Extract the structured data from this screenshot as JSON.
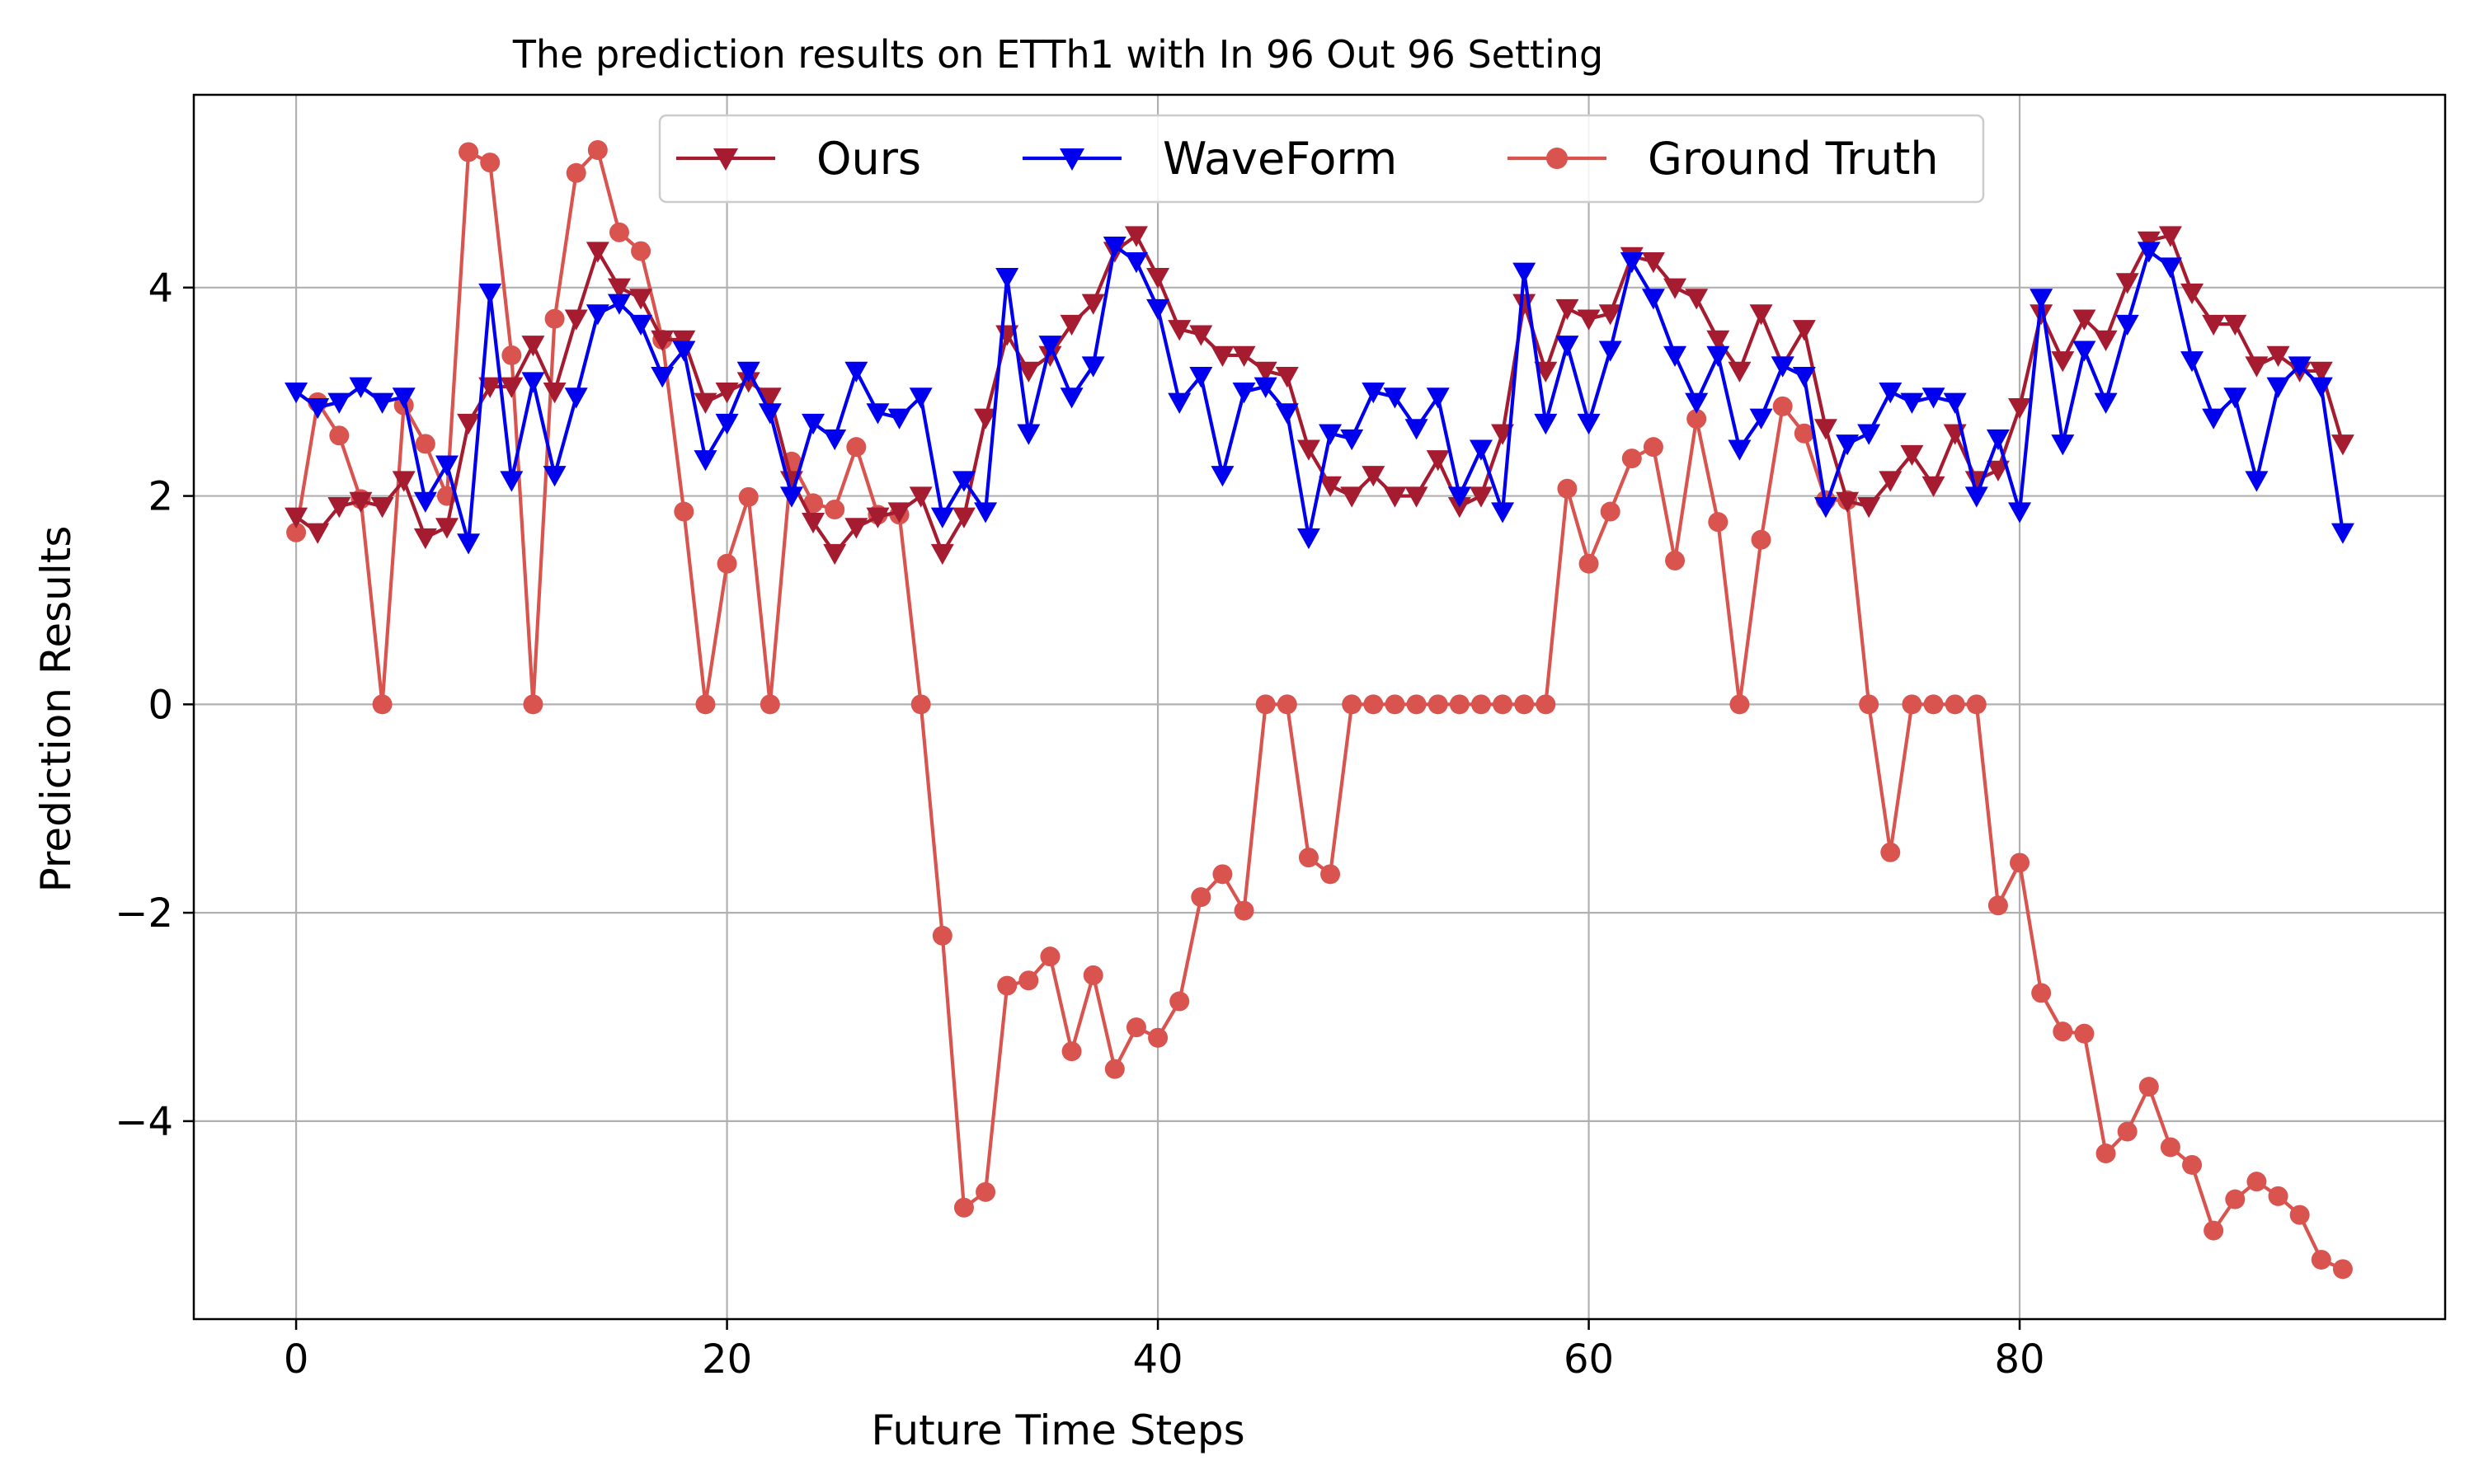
{
  "chart_data": {
    "type": "line",
    "title": "The prediction results on ETTh1 with In 96 Out 96 Setting",
    "xlabel": "Future Time Steps",
    "ylabel": "Prediction Results",
    "xlim": [
      -4.75,
      99.75
    ],
    "ylim": [
      -5.9,
      5.85
    ],
    "xticks": [
      0,
      20,
      40,
      60,
      80
    ],
    "xtick_labels": [
      "0",
      "20",
      "40",
      "60",
      "80"
    ],
    "yticks": [
      -4,
      -2,
      0,
      2,
      4
    ],
    "ytick_labels": [
      "−4",
      "−2",
      "0",
      "2",
      "4"
    ],
    "grid": true,
    "legend_position": "upper-center",
    "x": [
      0,
      1,
      2,
      3,
      4,
      5,
      6,
      7,
      8,
      9,
      10,
      11,
      12,
      13,
      14,
      15,
      16,
      17,
      18,
      19,
      20,
      21,
      22,
      23,
      24,
      25,
      26,
      27,
      28,
      29,
      30,
      31,
      32,
      33,
      34,
      35,
      36,
      37,
      38,
      39,
      40,
      41,
      42,
      43,
      44,
      45,
      46,
      47,
      48,
      49,
      50,
      51,
      52,
      53,
      54,
      55,
      56,
      57,
      58,
      59,
      60,
      61,
      62,
      63,
      64,
      65,
      66,
      67,
      68,
      69,
      70,
      71,
      72,
      73,
      74,
      75,
      76,
      77,
      78,
      79,
      80,
      81,
      82,
      83,
      84,
      85,
      86,
      87,
      88,
      89,
      90,
      91,
      92,
      93,
      94,
      95
    ],
    "series": [
      {
        "name": "Ours",
        "color": "#a51c30",
        "marker": "triangle-down",
        "values": [
          1.8,
          1.65,
          1.9,
          1.95,
          1.9,
          2.15,
          1.6,
          1.7,
          2.7,
          3.05,
          3.05,
          3.45,
          3.0,
          3.7,
          4.35,
          4.0,
          3.9,
          3.5,
          3.5,
          2.9,
          3.0,
          3.1,
          2.95,
          2.15,
          1.75,
          1.45,
          1.7,
          1.8,
          1.85,
          2.0,
          1.45,
          1.8,
          2.75,
          3.55,
          3.2,
          3.35,
          3.65,
          3.85,
          4.35,
          4.5,
          4.1,
          3.6,
          3.55,
          3.35,
          3.35,
          3.2,
          3.15,
          2.45,
          2.1,
          2.0,
          2.2,
          2.0,
          2.0,
          2.35,
          1.9,
          2.0,
          2.6,
          3.85,
          3.2,
          3.8,
          3.7,
          3.75,
          4.3,
          4.25,
          4.0,
          3.9,
          3.5,
          3.2,
          3.75,
          3.25,
          3.6,
          2.65,
          1.95,
          1.9,
          2.15,
          2.4,
          2.1,
          2.6,
          2.15,
          2.25,
          2.85,
          3.75,
          3.3,
          3.7,
          3.5,
          4.05,
          4.45,
          4.5,
          3.95,
          3.65,
          3.65,
          3.25,
          3.35,
          3.2,
          3.2,
          2.5
        ]
      },
      {
        "name": "WaveForm",
        "color": "#0000ee",
        "marker": "triangle-down",
        "values": [
          3.0,
          2.85,
          2.9,
          3.05,
          2.9,
          2.95,
          1.95,
          2.3,
          1.55,
          3.95,
          2.15,
          3.1,
          2.2,
          2.95,
          3.75,
          3.85,
          3.65,
          3.15,
          3.4,
          2.35,
          2.7,
          3.2,
          2.8,
          2.0,
          2.7,
          2.55,
          3.2,
          2.8,
          2.75,
          2.95,
          1.8,
          2.15,
          1.85,
          4.1,
          2.6,
          3.45,
          2.95,
          3.25,
          4.4,
          4.25,
          3.8,
          2.9,
          3.15,
          2.2,
          3.0,
          3.05,
          2.8,
          1.6,
          2.6,
          2.55,
          3.0,
          2.95,
          2.65,
          2.95,
          2.0,
          2.45,
          1.85,
          4.15,
          2.7,
          3.45,
          2.7,
          3.4,
          4.25,
          3.9,
          3.35,
          2.9,
          3.35,
          2.45,
          2.75,
          3.25,
          3.15,
          1.9,
          2.5,
          2.6,
          3.0,
          2.9,
          2.95,
          2.9,
          2.0,
          2.55,
          1.85,
          3.9,
          2.5,
          3.4,
          2.9,
          3.65,
          4.35,
          4.2,
          3.3,
          2.75,
          2.95,
          2.15,
          3.05,
          3.25,
          3.05,
          1.65
        ]
      },
      {
        "name": "Ground Truth",
        "color": "#d9534f",
        "marker": "circle",
        "values": [
          1.65,
          2.9,
          2.58,
          1.97,
          0,
          2.87,
          2.5,
          2.0,
          5.3,
          5.2,
          3.35,
          0,
          3.7,
          5.1,
          5.32,
          4.53,
          4.35,
          3.5,
          1.85,
          0,
          1.35,
          1.99,
          0,
          2.33,
          1.93,
          1.87,
          2.47,
          1.82,
          1.82,
          0,
          -2.22,
          -4.83,
          -4.68,
          -2.7,
          -2.65,
          -2.42,
          -3.33,
          -2.6,
          -3.5,
          -3.1,
          -3.2,
          -2.85,
          -1.85,
          -1.63,
          -1.98,
          0,
          0,
          -1.47,
          -1.63,
          0,
          0,
          0,
          0,
          0,
          0,
          0,
          0,
          0,
          0,
          2.07,
          1.35,
          1.85,
          2.36,
          2.47,
          1.38,
          2.74,
          1.75,
          0,
          1.58,
          2.86,
          2.6,
          1.96,
          1.96,
          0,
          -1.42,
          0,
          0,
          0,
          0,
          -1.93,
          -1.52,
          -2.77,
          -3.14,
          -3.16,
          -4.31,
          -4.1,
          -3.67,
          -4.25,
          -4.42,
          -5.05,
          -4.75,
          -4.58,
          -4.72,
          -4.9,
          -5.33,
          -5.42
        ]
      }
    ]
  }
}
